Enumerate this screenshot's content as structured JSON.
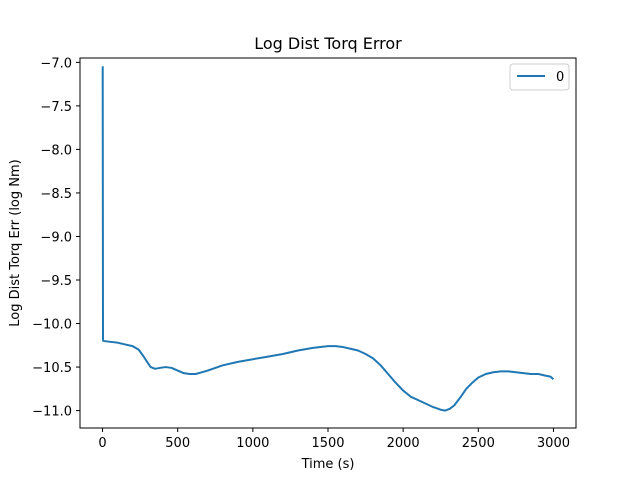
{
  "chart_data": {
    "type": "line",
    "title": "Log Dist Torq Error",
    "xlabel": "Time (s)",
    "ylabel": "Log Dist Torq Err (log Nm)",
    "xlim": [
      -150,
      3150
    ],
    "ylim": [
      -11.2,
      -6.95
    ],
    "xticks": [
      0,
      500,
      1000,
      1500,
      2000,
      2500,
      3000
    ],
    "xtick_labels": [
      "0",
      "500",
      "1000",
      "1500",
      "2000",
      "2500",
      "3000"
    ],
    "yticks": [
      -7.0,
      -7.5,
      -8.0,
      -8.5,
      -9.0,
      -9.5,
      -10.0,
      -10.5,
      -11.0
    ],
    "ytick_labels": [
      "−7.0",
      "−7.5",
      "−8.0",
      "−8.5",
      "−9.0",
      "−9.5",
      "−10.0",
      "−10.5",
      "−11.0"
    ],
    "grid": false,
    "legend_position": "top-right",
    "series": [
      {
        "name": "0",
        "color": "#1f77b4",
        "x": [
          0,
          1,
          3,
          5,
          50,
          100,
          150,
          200,
          240,
          270,
          300,
          320,
          350,
          380,
          420,
          460,
          500,
          540,
          580,
          620,
          660,
          700,
          750,
          800,
          900,
          1000,
          1100,
          1200,
          1300,
          1400,
          1500,
          1550,
          1600,
          1650,
          1700,
          1750,
          1800,
          1850,
          1900,
          1950,
          2000,
          2050,
          2100,
          2150,
          2200,
          2250,
          2280,
          2310,
          2340,
          2380,
          2420,
          2460,
          2500,
          2550,
          2600,
          2650,
          2700,
          2750,
          2800,
          2850,
          2900,
          2950,
          2980,
          3000
        ],
        "y": [
          -7.05,
          -7.05,
          -10.18,
          -10.2,
          -10.21,
          -10.22,
          -10.24,
          -10.26,
          -10.3,
          -10.37,
          -10.45,
          -10.5,
          -10.52,
          -10.51,
          -10.5,
          -10.51,
          -10.54,
          -10.57,
          -10.58,
          -10.58,
          -10.56,
          -10.54,
          -10.51,
          -10.48,
          -10.44,
          -10.41,
          -10.38,
          -10.35,
          -10.31,
          -10.28,
          -10.26,
          -10.26,
          -10.27,
          -10.29,
          -10.31,
          -10.35,
          -10.4,
          -10.48,
          -10.58,
          -10.68,
          -10.77,
          -10.84,
          -10.88,
          -10.92,
          -10.96,
          -10.99,
          -11.0,
          -10.98,
          -10.94,
          -10.85,
          -10.75,
          -10.68,
          -10.62,
          -10.58,
          -10.56,
          -10.55,
          -10.55,
          -10.56,
          -10.57,
          -10.58,
          -10.58,
          -10.6,
          -10.61,
          -10.64
        ]
      }
    ]
  }
}
